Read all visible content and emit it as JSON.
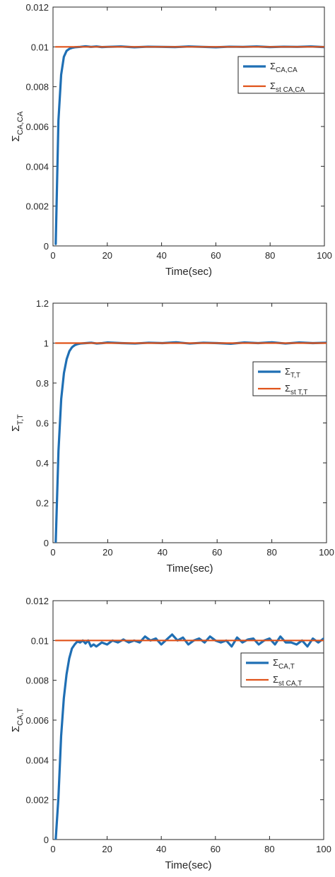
{
  "colors": {
    "simulated": "#1f6fb4",
    "steady_state": "#e0531a",
    "axis": "#262626"
  },
  "chart_data": [
    {
      "type": "line",
      "xlabel": "Time(sec)",
      "ylabel": {
        "symbol": "Σ",
        "sub": "CA,CA"
      },
      "xlim": [
        0,
        100
      ],
      "ylim": [
        0,
        0.012
      ],
      "xticks": [
        0,
        20,
        40,
        60,
        80,
        100
      ],
      "yticks": [
        0,
        0.002,
        0.004,
        0.006,
        0.008,
        0.01,
        0.012
      ],
      "xtick_labels": [
        "0",
        "20",
        "40",
        "60",
        "80",
        "100"
      ],
      "ytick_labels": [
        "0",
        "0.002",
        "0.004",
        "0.006",
        "0.008",
        "0.01",
        "0.012"
      ],
      "grid": false,
      "legend_position": "top-right",
      "series": [
        {
          "name": {
            "symbol": "Σ",
            "sub": "CA,CA"
          },
          "x": [
            1,
            2,
            3,
            4,
            5,
            6,
            7,
            8,
            10,
            12,
            14,
            16,
            18,
            20,
            25,
            30,
            35,
            40,
            45,
            50,
            55,
            60,
            65,
            70,
            75,
            80,
            85,
            90,
            95,
            100
          ],
          "y": [
            0.0001,
            0.0063,
            0.0086,
            0.0095,
            0.0098,
            0.0099,
            0.00995,
            0.00998,
            0.01,
            0.01003,
            0.01,
            0.01002,
            0.00999,
            0.01,
            0.01002,
            0.00998,
            0.01001,
            0.01,
            0.00999,
            0.01002,
            0.01,
            0.00998,
            0.01001,
            0.01,
            0.01002,
            0.00999,
            0.01001,
            0.01,
            0.01002,
            0.00999
          ]
        },
        {
          "name": {
            "symbol": "Σ",
            "sub": "st CA,CA"
          },
          "x": [
            1,
            100
          ],
          "y": [
            0.01,
            0.01
          ]
        }
      ]
    },
    {
      "type": "line",
      "xlabel": "Time(sec)",
      "ylabel": {
        "symbol": "Σ",
        "sub": "T,T"
      },
      "xlim": [
        0,
        100
      ],
      "ylim": [
        0,
        1.2
      ],
      "xticks": [
        0,
        20,
        40,
        60,
        80,
        100
      ],
      "yticks": [
        0,
        0.2,
        0.4,
        0.6,
        0.8,
        1,
        1.2
      ],
      "xtick_labels": [
        "0",
        "20",
        "40",
        "60",
        "80",
        "100"
      ],
      "ytick_labels": [
        "0",
        "0.2",
        "0.4",
        "0.6",
        "0.8",
        "1",
        "1.2"
      ],
      "grid": false,
      "legend_position": "right",
      "series": [
        {
          "name": {
            "symbol": "Σ",
            "sub": "T,T"
          },
          "x": [
            1,
            2,
            3,
            4,
            5,
            6,
            7,
            8,
            9,
            10,
            12,
            14,
            16,
            18,
            20,
            25,
            30,
            35,
            40,
            45,
            50,
            55,
            60,
            65,
            70,
            75,
            80,
            85,
            90,
            95,
            100
          ],
          "y": [
            0.005,
            0.46,
            0.72,
            0.85,
            0.92,
            0.96,
            0.98,
            0.99,
            0.995,
            0.998,
            1.0,
            1.002,
            0.998,
            1.0,
            1.003,
            1.0,
            0.998,
            1.002,
            1.0,
            1.004,
            0.998,
            1.002,
            1.0,
            0.997,
            1.003,
            1.0,
            1.004,
            0.998,
            1.003,
            1.0,
            1.002
          ]
        },
        {
          "name": {
            "symbol": "Σ",
            "sub": "st T,T"
          },
          "x": [
            1,
            100
          ],
          "y": [
            1,
            1
          ]
        }
      ]
    },
    {
      "type": "line",
      "xlabel": "Time(sec)",
      "ylabel": {
        "symbol": "Σ",
        "sub": "CA,T"
      },
      "xlim": [
        0,
        100
      ],
      "ylim": [
        0,
        0.012
      ],
      "xticks": [
        0,
        20,
        40,
        60,
        80,
        100
      ],
      "yticks": [
        0,
        0.002,
        0.004,
        0.006,
        0.008,
        0.01,
        0.012
      ],
      "xtick_labels": [
        "0",
        "20",
        "40",
        "60",
        "80",
        "100"
      ],
      "ytick_labels": [
        "0",
        "0.002",
        "0.004",
        "0.006",
        "0.008",
        "0.01",
        "0.012"
      ],
      "grid": false,
      "legend_position": "right",
      "series": [
        {
          "name": {
            "symbol": "Σ",
            "sub": "CA,T"
          },
          "x": [
            1,
            2,
            3,
            4,
            5,
            6,
            7,
            8,
            9,
            10,
            11,
            12,
            13,
            14,
            15,
            16,
            18,
            20,
            22,
            24,
            26,
            28,
            30,
            32,
            34,
            36,
            38,
            40,
            42,
            44,
            46,
            48,
            50,
            52,
            54,
            56,
            58,
            60,
            62,
            64,
            66,
            68,
            70,
            72,
            74,
            76,
            78,
            80,
            82,
            84,
            86,
            88,
            90,
            92,
            94,
            96,
            98,
            100
          ],
          "y": [
            0.0,
            0.0021,
            0.0052,
            0.0071,
            0.0083,
            0.0091,
            0.0096,
            0.0098,
            0.00995,
            0.0099,
            0.01,
            0.00985,
            0.01,
            0.0097,
            0.0098,
            0.0097,
            0.0099,
            0.0098,
            0.01,
            0.0099,
            0.01005,
            0.0099,
            0.01,
            0.0099,
            0.0102,
            0.01,
            0.0101,
            0.0098,
            0.01005,
            0.0103,
            0.01,
            0.01015,
            0.0098,
            0.01,
            0.0101,
            0.0099,
            0.0102,
            0.01,
            0.0099,
            0.01,
            0.0097,
            0.01015,
            0.0099,
            0.01005,
            0.0101,
            0.0098,
            0.01,
            0.0101,
            0.0098,
            0.0102,
            0.0099,
            0.0099,
            0.0098,
            0.01,
            0.0097,
            0.0101,
            0.0099,
            0.0101
          ]
        },
        {
          "name": {
            "symbol": "Σ",
            "sub": "st CA,T"
          },
          "x": [
            1,
            100
          ],
          "y": [
            0.01,
            0.01
          ]
        }
      ]
    }
  ]
}
